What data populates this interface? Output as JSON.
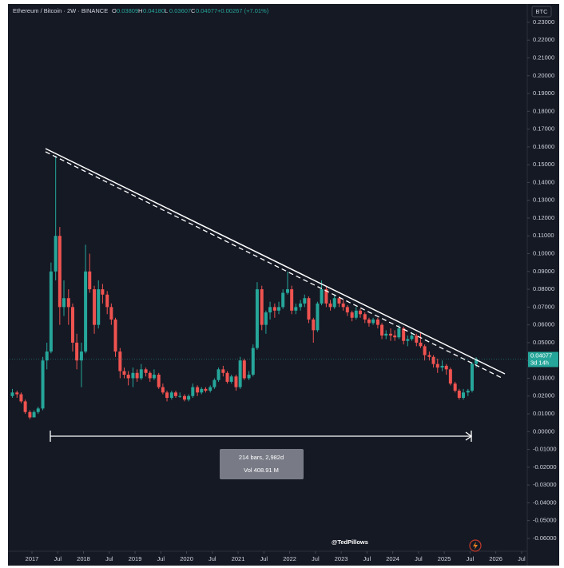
{
  "header": {
    "symbol": "Ethereum / Bitcoin · 2W · BINANCE",
    "quote": [
      {
        "key": "O",
        "value": "0.03809"
      },
      {
        "key": "H",
        "value": "0.04180"
      },
      {
        "key": "L",
        "value": "0.03607"
      },
      {
        "key": "C",
        "value": "0.04077"
      }
    ],
    "change": "+0.00267 (+7.01%)",
    "currency": "BTC"
  },
  "chart_data": {
    "type": "candlestick",
    "up_color": "#26a69a",
    "down_color": "#ef5350",
    "grid": false,
    "xlim": [
      2016.566,
      2026.61
    ],
    "ylim": [
      -0.0672,
      0.2403
    ],
    "xticks": [
      2017,
      {
        "value": 2017.5,
        "label": "Jul"
      },
      2018,
      {
        "value": 2018.5,
        "label": "Jul"
      },
      2019,
      {
        "value": 2019.5,
        "label": "Jul"
      },
      2020,
      {
        "value": 2020.5,
        "label": "Jul"
      },
      2021,
      {
        "value": 2021.5,
        "label": "Jul"
      },
      2022,
      {
        "value": 2022.5,
        "label": "Jul"
      },
      2023,
      {
        "value": 2023.5,
        "label": "Jul"
      },
      2024,
      {
        "value": 2024.5,
        "label": "Jul"
      },
      2025,
      {
        "value": 2025.5,
        "label": "Jul"
      },
      2026,
      {
        "value": 2026.5,
        "label": "Jul"
      }
    ],
    "yticks": [
      {
        "value": 0.23,
        "label": "0.23000"
      },
      {
        "value": 0.22,
        "label": "0.22000"
      },
      {
        "value": 0.21,
        "label": "0.21000"
      },
      {
        "value": 0.2,
        "label": "0.20000"
      },
      {
        "value": 0.19,
        "label": "0.19000"
      },
      {
        "value": 0.18,
        "label": "0.18000"
      },
      {
        "value": 0.17,
        "label": "0.17000"
      },
      {
        "value": 0.16,
        "label": "0.16000"
      },
      {
        "value": 0.15,
        "label": "0.15000"
      },
      {
        "value": 0.14,
        "label": "0.14000"
      },
      {
        "value": 0.13,
        "label": "0.13000"
      },
      {
        "value": 0.12,
        "label": "0.12000"
      },
      {
        "value": 0.11,
        "label": "0.11000"
      },
      {
        "value": 0.1,
        "label": "0.10000"
      },
      {
        "value": 0.09,
        "label": "0.09000"
      },
      {
        "value": 0.08,
        "label": "0.08000"
      },
      {
        "value": 0.07,
        "label": "0.07000"
      },
      {
        "value": 0.06,
        "label": "0.06000"
      },
      {
        "value": 0.05,
        "label": "0.05000"
      },
      {
        "value": 0.04,
        "label": "0.04000"
      },
      {
        "value": 0.03,
        "label": "0.03000"
      },
      {
        "value": 0.02,
        "label": "0.02000"
      },
      {
        "value": 0.01,
        "label": "0.01000"
      },
      {
        "value": 0,
        "label": "0.00000"
      },
      {
        "value": -0.01,
        "label": "-0.01000"
      },
      {
        "value": -0.02,
        "label": "-0.02000"
      },
      {
        "value": -0.03,
        "label": "-0.03000"
      },
      {
        "value": -0.04,
        "label": "-0.04000"
      },
      {
        "value": -0.05,
        "label": "-0.05000"
      },
      {
        "value": -0.06,
        "label": "-0.06000"
      }
    ],
    "ohlc": [
      [
        2016.62,
        0.02,
        0.024,
        0.019,
        0.022
      ],
      [
        2016.71,
        0.022,
        0.023,
        0.019,
        0.021
      ],
      [
        2016.79,
        0.021,
        0.022,
        0.016,
        0.017
      ],
      [
        2016.87,
        0.017,
        0.018,
        0.01,
        0.011
      ],
      [
        2016.96,
        0.011,
        0.012,
        0.007,
        0.008
      ],
      [
        2017.04,
        0.008,
        0.012,
        0.008,
        0.011
      ],
      [
        2017.12,
        0.011,
        0.014,
        0.01,
        0.013
      ],
      [
        2017.21,
        0.013,
        0.042,
        0.012,
        0.04
      ],
      [
        2017.29,
        0.04,
        0.05,
        0.035,
        0.045
      ],
      [
        2017.37,
        0.045,
        0.095,
        0.044,
        0.09
      ],
      [
        2017.46,
        0.09,
        0.155,
        0.085,
        0.11
      ],
      [
        2017.54,
        0.11,
        0.115,
        0.06,
        0.07
      ],
      [
        2017.62,
        0.07,
        0.085,
        0.065,
        0.075
      ],
      [
        2017.71,
        0.075,
        0.08,
        0.06,
        0.07
      ],
      [
        2017.79,
        0.07,
        0.072,
        0.045,
        0.05
      ],
      [
        2017.87,
        0.05,
        0.055,
        0.035,
        0.04
      ],
      [
        2017.96,
        0.04,
        0.05,
        0.025,
        0.045
      ],
      [
        2018.04,
        0.045,
        0.105,
        0.044,
        0.09
      ],
      [
        2018.12,
        0.09,
        0.1,
        0.078,
        0.08
      ],
      [
        2018.21,
        0.08,
        0.082,
        0.055,
        0.06
      ],
      [
        2018.29,
        0.06,
        0.085,
        0.058,
        0.08
      ],
      [
        2018.37,
        0.08,
        0.083,
        0.072,
        0.077
      ],
      [
        2018.46,
        0.077,
        0.079,
        0.066,
        0.07
      ],
      [
        2018.54,
        0.07,
        0.072,
        0.06,
        0.063
      ],
      [
        2018.62,
        0.063,
        0.064,
        0.042,
        0.045
      ],
      [
        2018.71,
        0.045,
        0.047,
        0.03,
        0.034
      ],
      [
        2018.79,
        0.034,
        0.036,
        0.03,
        0.032
      ],
      [
        2018.87,
        0.032,
        0.034,
        0.026,
        0.03
      ],
      [
        2018.96,
        0.03,
        0.036,
        0.025,
        0.033
      ],
      [
        2019.04,
        0.033,
        0.035,
        0.028,
        0.03
      ],
      [
        2019.12,
        0.03,
        0.038,
        0.029,
        0.035
      ],
      [
        2019.21,
        0.035,
        0.036,
        0.031,
        0.033
      ],
      [
        2019.29,
        0.033,
        0.034,
        0.028,
        0.03
      ],
      [
        2019.37,
        0.03,
        0.035,
        0.029,
        0.032
      ],
      [
        2019.46,
        0.032,
        0.033,
        0.024,
        0.025
      ],
      [
        2019.54,
        0.025,
        0.027,
        0.021,
        0.022
      ],
      [
        2019.62,
        0.022,
        0.023,
        0.017,
        0.019
      ],
      [
        2019.71,
        0.019,
        0.023,
        0.018,
        0.022
      ],
      [
        2019.79,
        0.022,
        0.023,
        0.019,
        0.02
      ],
      [
        2019.87,
        0.02,
        0.022,
        0.019,
        0.02
      ],
      [
        2019.96,
        0.02,
        0.021,
        0.017,
        0.018
      ],
      [
        2020.04,
        0.018,
        0.021,
        0.017,
        0.02
      ],
      [
        2020.12,
        0.02,
        0.027,
        0.019,
        0.025
      ],
      [
        2020.21,
        0.025,
        0.026,
        0.02,
        0.022
      ],
      [
        2020.29,
        0.022,
        0.025,
        0.021,
        0.024
      ],
      [
        2020.37,
        0.024,
        0.025,
        0.022,
        0.023
      ],
      [
        2020.46,
        0.023,
        0.026,
        0.022,
        0.025
      ],
      [
        2020.54,
        0.025,
        0.03,
        0.024,
        0.029
      ],
      [
        2020.62,
        0.029,
        0.036,
        0.028,
        0.035
      ],
      [
        2020.71,
        0.035,
        0.037,
        0.031,
        0.033
      ],
      [
        2020.79,
        0.033,
        0.034,
        0.027,
        0.028
      ],
      [
        2020.87,
        0.028,
        0.032,
        0.027,
        0.031
      ],
      [
        2020.96,
        0.031,
        0.032,
        0.023,
        0.025
      ],
      [
        2021.04,
        0.025,
        0.042,
        0.024,
        0.04
      ],
      [
        2021.12,
        0.04,
        0.041,
        0.029,
        0.03
      ],
      [
        2021.21,
        0.03,
        0.034,
        0.029,
        0.032
      ],
      [
        2021.29,
        0.032,
        0.049,
        0.031,
        0.047
      ],
      [
        2021.37,
        0.047,
        0.084,
        0.046,
        0.08
      ],
      [
        2021.46,
        0.08,
        0.082,
        0.057,
        0.06
      ],
      [
        2021.54,
        0.06,
        0.068,
        0.055,
        0.067
      ],
      [
        2021.62,
        0.067,
        0.073,
        0.063,
        0.07
      ],
      [
        2021.71,
        0.07,
        0.072,
        0.064,
        0.068
      ],
      [
        2021.79,
        0.068,
        0.073,
        0.066,
        0.07
      ],
      [
        2021.87,
        0.07,
        0.08,
        0.069,
        0.078
      ],
      [
        2021.96,
        0.078,
        0.09,
        0.077,
        0.08
      ],
      [
        2022.04,
        0.08,
        0.082,
        0.066,
        0.068
      ],
      [
        2022.12,
        0.068,
        0.072,
        0.066,
        0.07
      ],
      [
        2022.21,
        0.07,
        0.074,
        0.068,
        0.072
      ],
      [
        2022.29,
        0.072,
        0.077,
        0.07,
        0.075
      ],
      [
        2022.37,
        0.075,
        0.076,
        0.061,
        0.063
      ],
      [
        2022.46,
        0.063,
        0.064,
        0.05,
        0.057
      ],
      [
        2022.54,
        0.057,
        0.073,
        0.056,
        0.072
      ],
      [
        2022.62,
        0.072,
        0.085,
        0.071,
        0.08
      ],
      [
        2022.71,
        0.08,
        0.082,
        0.07,
        0.072
      ],
      [
        2022.79,
        0.072,
        0.074,
        0.068,
        0.07
      ],
      [
        2022.87,
        0.07,
        0.077,
        0.069,
        0.075
      ],
      [
        2022.96,
        0.075,
        0.076,
        0.07,
        0.072
      ],
      [
        2023.04,
        0.072,
        0.074,
        0.068,
        0.07
      ],
      [
        2023.12,
        0.07,
        0.071,
        0.065,
        0.067
      ],
      [
        2023.21,
        0.067,
        0.068,
        0.062,
        0.064
      ],
      [
        2023.29,
        0.064,
        0.07,
        0.063,
        0.068
      ],
      [
        2023.37,
        0.068,
        0.069,
        0.064,
        0.066
      ],
      [
        2023.46,
        0.066,
        0.067,
        0.061,
        0.063
      ],
      [
        2023.54,
        0.063,
        0.064,
        0.059,
        0.061
      ],
      [
        2023.62,
        0.061,
        0.064,
        0.06,
        0.063
      ],
      [
        2023.71,
        0.063,
        0.064,
        0.058,
        0.06
      ],
      [
        2023.79,
        0.06,
        0.061,
        0.052,
        0.054
      ],
      [
        2023.87,
        0.054,
        0.057,
        0.052,
        0.055
      ],
      [
        2023.96,
        0.055,
        0.058,
        0.051,
        0.054
      ],
      [
        2024.04,
        0.054,
        0.057,
        0.051,
        0.053
      ],
      [
        2024.12,
        0.053,
        0.06,
        0.052,
        0.058
      ],
      [
        2024.21,
        0.058,
        0.059,
        0.049,
        0.051
      ],
      [
        2024.29,
        0.051,
        0.054,
        0.048,
        0.052
      ],
      [
        2024.37,
        0.052,
        0.056,
        0.051,
        0.054
      ],
      [
        2024.46,
        0.054,
        0.055,
        0.048,
        0.05
      ],
      [
        2024.54,
        0.05,
        0.056,
        0.047,
        0.048
      ],
      [
        2024.62,
        0.048,
        0.049,
        0.04,
        0.043
      ],
      [
        2024.71,
        0.043,
        0.045,
        0.04,
        0.042
      ],
      [
        2024.79,
        0.042,
        0.043,
        0.036,
        0.038
      ],
      [
        2024.87,
        0.038,
        0.041,
        0.033,
        0.036
      ],
      [
        2024.96,
        0.036,
        0.04,
        0.034,
        0.037
      ],
      [
        2025.04,
        0.037,
        0.038,
        0.032,
        0.035
      ],
      [
        2025.12,
        0.035,
        0.036,
        0.026,
        0.027
      ],
      [
        2025.21,
        0.027,
        0.028,
        0.022,
        0.023
      ],
      [
        2025.29,
        0.023,
        0.024,
        0.018,
        0.019
      ],
      [
        2025.37,
        0.019,
        0.024,
        0.018,
        0.022
      ],
      [
        2025.46,
        0.022,
        0.024,
        0.02,
        0.023
      ],
      [
        2025.54,
        0.023,
        0.039,
        0.022,
        0.03809
      ],
      [
        2025.62,
        0.03809,
        0.0418,
        0.03607,
        0.04077
      ]
    ],
    "last_price_countdown": "3d 14h"
  },
  "measure": {
    "lines": [
      "214 bars, 2,982d",
      "Vol 408.91 M"
    ]
  },
  "watermark": "@TedPillows"
}
